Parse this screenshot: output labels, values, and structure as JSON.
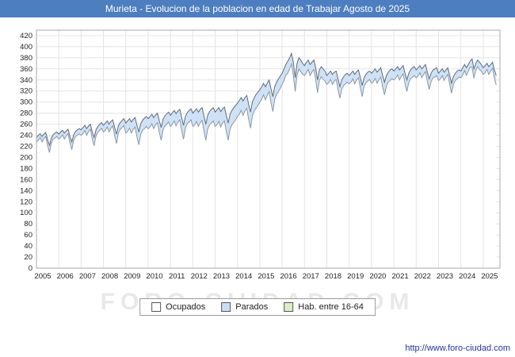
{
  "header": {
    "title": "Murieta - Evolucion de la poblacion en edad de Trabajar Agosto de 2025",
    "background_color": "#4d7ebf"
  },
  "watermark": "FORO-CIUDAD.COM",
  "footer": {
    "url": "http://www.foro-ciudad.com"
  },
  "legend": {
    "items": [
      {
        "label": "Ocupados",
        "color": "#ffffff"
      },
      {
        "label": "Parados",
        "color": "#c9def2"
      },
      {
        "label": "Hab. entre 16-64",
        "color": "#d8efc8"
      }
    ]
  },
  "chart_data": {
    "type": "area",
    "title": "Murieta - Evolucion de la poblacion en edad de Trabajar Agosto de 2025",
    "xlabel": "",
    "ylabel": "",
    "frequency": "monthly",
    "x_start_year": 2005,
    "x_end_label": "Agosto 2025",
    "xlim": [
      2005,
      2025.75
    ],
    "ylim": [
      0,
      430
    ],
    "ytick_step": 20,
    "grid": true,
    "legend_position": "bottom",
    "y_ticks": [
      0,
      20,
      40,
      60,
      80,
      100,
      120,
      140,
      160,
      180,
      200,
      220,
      240,
      260,
      280,
      300,
      320,
      340,
      360,
      380,
      400,
      420
    ],
    "x_tick_labels": [
      "2005",
      "2006",
      "2007",
      "2008",
      "2009",
      "2010",
      "2011",
      "2012",
      "2013",
      "2014",
      "2015",
      "2016",
      "2017",
      "2018",
      "2019",
      "2020",
      "2021",
      "2022",
      "2023",
      "2024",
      "2025"
    ],
    "series": [
      {
        "name": "Ocupados",
        "line_color": "#8a97a8",
        "fill_color": "#ffffff",
        "values": [
          228,
          231,
          236,
          228,
          234,
          238,
          221,
          209,
          226,
          233,
          235,
          238,
          233,
          236,
          241,
          233,
          239,
          243,
          226,
          214,
          231,
          238,
          240,
          243,
          240,
          243,
          249,
          240,
          247,
          251,
          233,
          221,
          239,
          246,
          249,
          253,
          246,
          249,
          255,
          246,
          253,
          257,
          239,
          225,
          244,
          251,
          254,
          258,
          244,
          247,
          253,
          244,
          251,
          255,
          237,
          223,
          242,
          249,
          252,
          256,
          252,
          255,
          261,
          252,
          259,
          263,
          245,
          231,
          250,
          257,
          260,
          264,
          256,
          260,
          266,
          257,
          264,
          268,
          249,
          233,
          253,
          261,
          264,
          268,
          256,
          259,
          265,
          256,
          263,
          267,
          248,
          231,
          251,
          259,
          262,
          266,
          256,
          259,
          265,
          255,
          262,
          266,
          247,
          231,
          251,
          259,
          263,
          268,
          274,
          278,
          285,
          276,
          284,
          289,
          269,
          253,
          275,
          284,
          289,
          294,
          300,
          305,
          313,
          304,
          312,
          319,
          299,
          283,
          305,
          314,
          319,
          325,
          332,
          339,
          349,
          352,
          360,
          369,
          349,
          319,
          349,
          360,
          355,
          350,
          348,
          353,
          359,
          348,
          354,
          359,
          341,
          317,
          339,
          346,
          341,
          338,
          332,
          335,
          341,
          332,
          338,
          341,
          323,
          307,
          323,
          330,
          333,
          336,
          333,
          336,
          342,
          333,
          340,
          344,
          326,
          310,
          328,
          335,
          338,
          341,
          334,
          337,
          343,
          334,
          340,
          345,
          327,
          313,
          329,
          336,
          339,
          342,
          340,
          343,
          349,
          340,
          346,
          351,
          333,
          319,
          335,
          342,
          345,
          348,
          344,
          347,
          353,
          344,
          350,
          355,
          337,
          323,
          337,
          344,
          345,
          348,
          339,
          342,
          348,
          339,
          345,
          350,
          332,
          316,
          332,
          339,
          342,
          345,
          344,
          349,
          357,
          348,
          356,
          363,
          363,
          343,
          357,
          364,
          359,
          356,
          350,
          353,
          359,
          350,
          356,
          361,
          343,
          331
        ]
      },
      {
        "name": "Parados",
        "line_color": "#7f9fbf",
        "fill_color": "#cfe2f5",
        "values": [
          8,
          9,
          7,
          10,
          8,
          7,
          11,
          13,
          9,
          8,
          9,
          8,
          9,
          10,
          8,
          11,
          9,
          8,
          12,
          14,
          10,
          9,
          10,
          9,
          10,
          11,
          9,
          12,
          10,
          9,
          13,
          15,
          11,
          10,
          11,
          10,
          12,
          13,
          11,
          14,
          12,
          11,
          15,
          17,
          13,
          12,
          13,
          12,
          18,
          19,
          17,
          20,
          18,
          17,
          21,
          23,
          19,
          18,
          19,
          18,
          18,
          19,
          17,
          20,
          18,
          17,
          21,
          23,
          19,
          18,
          19,
          18,
          20,
          21,
          19,
          22,
          20,
          19,
          23,
          25,
          21,
          20,
          21,
          20,
          24,
          25,
          23,
          26,
          24,
          23,
          27,
          29,
          25,
          24,
          25,
          24,
          26,
          27,
          25,
          28,
          26,
          25,
          29,
          31,
          27,
          26,
          27,
          26,
          24,
          25,
          23,
          26,
          24,
          23,
          27,
          29,
          25,
          24,
          25,
          24,
          22,
          23,
          21,
          24,
          22,
          21,
          25,
          27,
          23,
          22,
          23,
          22,
          20,
          21,
          19,
          22,
          20,
          19,
          23,
          25,
          21,
          20,
          21,
          20,
          18,
          19,
          17,
          20,
          18,
          17,
          21,
          23,
          19,
          18,
          19,
          18,
          16,
          17,
          15,
          18,
          16,
          15,
          19,
          21,
          17,
          16,
          17,
          16,
          15,
          16,
          14,
          17,
          15,
          14,
          18,
          20,
          16,
          15,
          16,
          15,
          18,
          19,
          17,
          20,
          18,
          17,
          21,
          23,
          19,
          18,
          19,
          18,
          16,
          17,
          15,
          18,
          16,
          15,
          19,
          21,
          17,
          16,
          17,
          16,
          14,
          15,
          13,
          16,
          14,
          13,
          17,
          19,
          15,
          14,
          15,
          14,
          13,
          14,
          12,
          15,
          13,
          12,
          16,
          18,
          14,
          13,
          14,
          13,
          12,
          13,
          11,
          14,
          12,
          11,
          15,
          17,
          13,
          12,
          13,
          12,
          12,
          13,
          11,
          14,
          12,
          11,
          15,
          17
        ]
      },
      {
        "name": "Hab. entre 16-64",
        "line_color": "#5f6b7a",
        "fill_color": "#d8efc8",
        "values": [
          236,
          240,
          243,
          238,
          242,
          245,
          232,
          222,
          235,
          241,
          244,
          246,
          242,
          246,
          249,
          244,
          248,
          251,
          238,
          228,
          241,
          247,
          250,
          252,
          250,
          254,
          258,
          252,
          257,
          260,
          246,
          236,
          250,
          256,
          260,
          263,
          258,
          262,
          266,
          260,
          265,
          268,
          254,
          242,
          257,
          263,
          267,
          270,
          262,
          266,
          270,
          264,
          269,
          272,
          258,
          246,
          261,
          267,
          271,
          274,
          270,
          274,
          278,
          272,
          277,
          280,
          266,
          254,
          269,
          275,
          279,
          282,
          276,
          281,
          285,
          279,
          284,
          287,
          272,
          258,
          274,
          281,
          285,
          288,
          280,
          284,
          288,
          282,
          287,
          290,
          275,
          260,
          276,
          283,
          287,
          290,
          282,
          286,
          290,
          283,
          288,
          291,
          276,
          262,
          278,
          285,
          290,
          294,
          298,
          303,
          308,
          302,
          308,
          312,
          296,
          282,
          300,
          308,
          314,
          318,
          322,
          328,
          334,
          328,
          334,
          340,
          324,
          310,
          328,
          336,
          342,
          347,
          352,
          360,
          368,
          374,
          380,
          388,
          372,
          344,
          370,
          380,
          376,
          370,
          366,
          372,
          376,
          368,
          372,
          376,
          362,
          340,
          358,
          364,
          360,
          356,
          348,
          352,
          356,
          350,
          354,
          356,
          342,
          328,
          340,
          346,
          350,
          352,
          348,
          352,
          356,
          350,
          355,
          358,
          344,
          330,
          344,
          350,
          354,
          356,
          352,
          356,
          360,
          354,
          358,
          362,
          348,
          336,
          348,
          354,
          358,
          360,
          356,
          360,
          364,
          358,
          362,
          366,
          352,
          340,
          352,
          358,
          362,
          364,
          358,
          362,
          366,
          360,
          364,
          368,
          354,
          342,
          352,
          358,
          360,
          362,
          352,
          356,
          360,
          354,
          358,
          362,
          348,
          334,
          346,
          352,
          356,
          358,
          356,
          362,
          368,
          362,
          368,
          374,
          378,
          360,
          370,
          376,
          372,
          368,
          362,
          366,
          370,
          364,
          368,
          372,
          358,
          348
        ]
      }
    ]
  }
}
